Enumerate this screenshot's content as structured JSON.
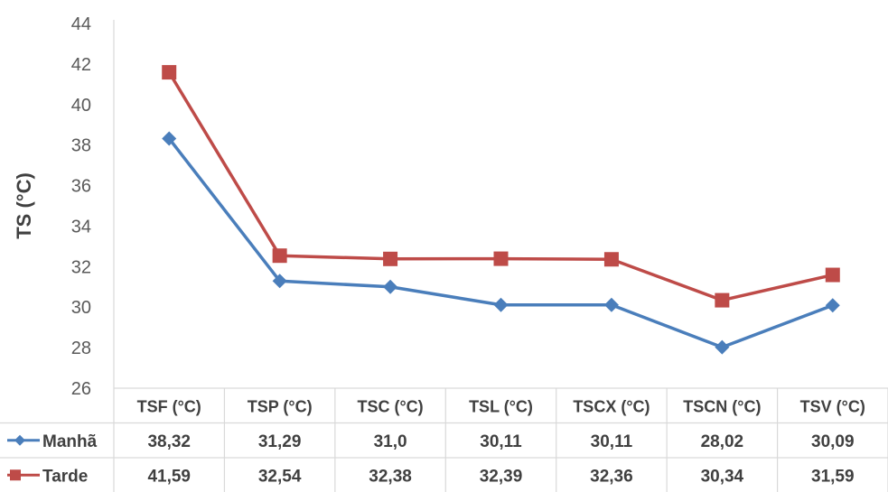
{
  "chart_data": {
    "type": "line",
    "ylabel": "TS (°C)",
    "ylim": [
      26,
      44
    ],
    "yticks": [
      26,
      28,
      30,
      32,
      34,
      36,
      38,
      40,
      42,
      44
    ],
    "grid": false,
    "categories": [
      "TSF (°C)",
      "TSP (°C)",
      "TSC (°C)",
      "TSL (°C)",
      "TSCX (°C)",
      "TSCN (°C)",
      "TSV (°C)"
    ],
    "series": [
      {
        "name": "Manhã",
        "color": "#4a7ebb",
        "marker": "diamond",
        "values": [
          38.32,
          31.29,
          31.0,
          30.11,
          30.11,
          28.02,
          30.09
        ],
        "labels": [
          "38,32",
          "31,29",
          "31,0",
          "30,11",
          "30,11",
          "28,02",
          "30,09"
        ]
      },
      {
        "name": "Tarde",
        "color": "#be4b48",
        "marker": "square",
        "values": [
          41.59,
          32.54,
          32.38,
          32.39,
          32.36,
          30.34,
          31.59
        ],
        "labels": [
          "41,59",
          "32,54",
          "32,38",
          "32,39",
          "32,36",
          "30,34",
          "31,59"
        ]
      }
    ],
    "data_table": true
  }
}
